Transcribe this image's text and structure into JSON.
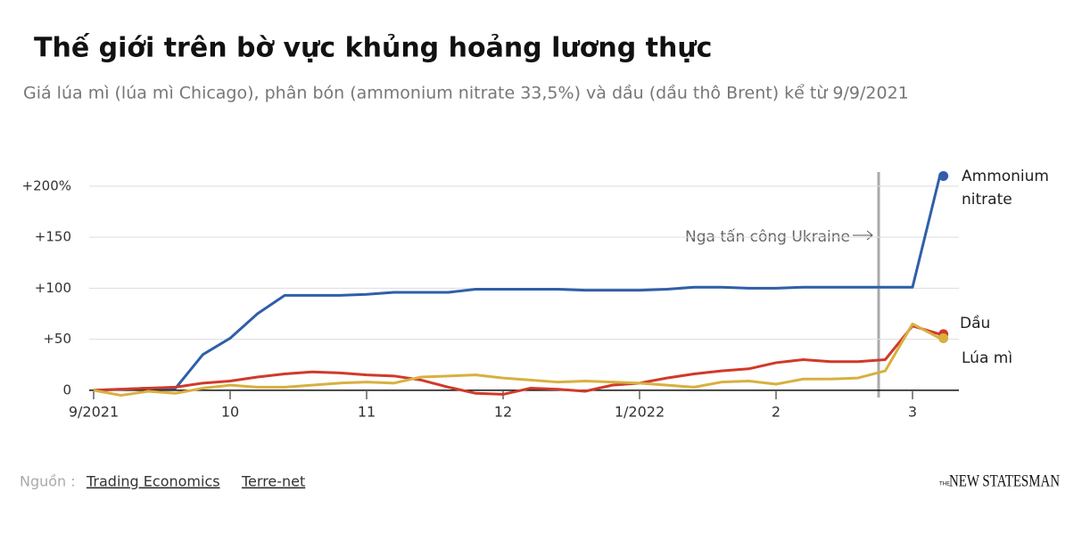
{
  "chart_data": {
    "type": "line",
    "title": "Thế giới trên bờ vực khủng hoảng lương thực",
    "subtitle": "Giá lúa mì (lúa mì Chicago), phân bón (ammonium nitrate 33,5%) và dầu (dầu thô Brent) kể từ 9/9/2021",
    "categories": [
      "9/2021",
      null,
      null,
      null,
      null,
      "10",
      null,
      null,
      null,
      null,
      "11",
      null,
      null,
      null,
      null,
      "12",
      null,
      null,
      null,
      null,
      "1/2022",
      null,
      null,
      null,
      null,
      "2",
      null,
      null,
      null,
      null,
      "3",
      null
    ],
    "series": [
      {
        "name": "Ammonium nitrate",
        "color": "#2f5fa8",
        "values": [
          0,
          1,
          2,
          2,
          35,
          51,
          75,
          93,
          93,
          93,
          94,
          96,
          96,
          96,
          99,
          99,
          99,
          99,
          98,
          98,
          98,
          99,
          101,
          101,
          100,
          100,
          101,
          101,
          101,
          101,
          101,
          210
        ]
      },
      {
        "name": "Dầu",
        "color": "#d03a2a",
        "values": [
          0,
          1,
          2,
          3,
          7,
          9,
          13,
          16,
          18,
          17,
          15,
          14,
          10,
          3,
          -3,
          -4,
          2,
          1,
          -1,
          5,
          7,
          12,
          16,
          19,
          21,
          27,
          30,
          28,
          28,
          30,
          63,
          55
        ]
      },
      {
        "name": "Lúa mì",
        "color": "#d8b040",
        "values": [
          0,
          -5,
          -1,
          -3,
          2,
          5,
          3,
          3,
          5,
          7,
          8,
          7,
          13,
          14,
          15,
          12,
          10,
          8,
          9,
          8,
          7,
          5,
          3,
          8,
          9,
          6,
          11,
          11,
          12,
          19,
          65,
          51
        ]
      }
    ],
    "ylim": [
      -8,
      220
    ],
    "yticks": [
      0,
      {
        "value": 50,
        "label": "+50"
      },
      {
        "value": 100,
        "label": "+100"
      },
      {
        "value": 150,
        "label": "+150"
      },
      {
        "value": 200,
        "label": "+200%"
      }
    ],
    "grid": true,
    "annotation": "Nga tấn công Ukraine",
    "source_label": "Nguồn :",
    "sources": [
      "Trading Economics",
      "Terre-net"
    ],
    "logo_small": "THE",
    "logo": "NEW STATESMAN"
  }
}
